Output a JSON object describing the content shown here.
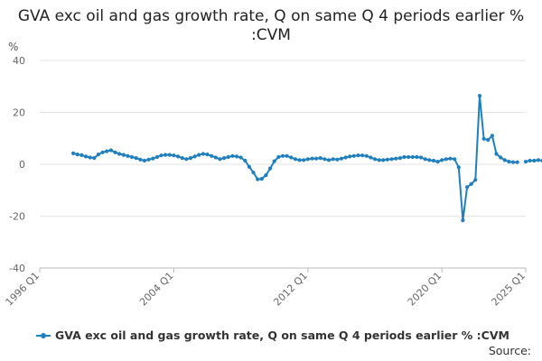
{
  "chart_data": {
    "type": "line",
    "title": "GVA exc oil and gas growth rate, Q on same Q 4 periods earlier % :CVM",
    "ylabel": "%",
    "ylim": [
      -40,
      40
    ],
    "yticks": [
      -40,
      -20,
      0,
      20,
      40
    ],
    "xlim": [
      1996.0,
      2025.0
    ],
    "xticks": [
      {
        "value": 1996.0,
        "label": "1996 Q1"
      },
      {
        "value": 2004.0,
        "label": "2004 Q1"
      },
      {
        "value": 2012.0,
        "label": "2012 Q1"
      },
      {
        "value": 2020.0,
        "label": "2020 Q1"
      },
      {
        "value": 2025.0,
        "label": "2025 Q1"
      }
    ],
    "grid": true,
    "legend_position": "bottom",
    "color": "#1f7fbf",
    "series": [
      {
        "name": "GVA exc oil and gas growth rate, Q on same Q 4 periods earlier % :CVM",
        "start": "1998 Q1",
        "values": [
          4.2,
          3.8,
          3.5,
          3.0,
          2.6,
          2.4,
          3.8,
          4.6,
          5.0,
          5.4,
          4.6,
          4.0,
          3.6,
          3.2,
          2.8,
          2.4,
          1.8,
          1.4,
          1.8,
          2.2,
          2.8,
          3.4,
          3.6,
          3.6,
          3.4,
          3.0,
          2.4,
          2.0,
          2.4,
          3.0,
          3.6,
          4.0,
          3.8,
          3.2,
          2.6,
          2.0,
          2.4,
          2.8,
          3.2,
          3.0,
          2.6,
          1.4,
          -1.0,
          -3.2,
          -5.8,
          -5.6,
          -4.2,
          -1.6,
          1.2,
          2.8,
          3.2,
          3.2,
          2.6,
          2.0,
          1.6,
          1.6,
          2.0,
          2.2,
          2.2,
          2.4,
          2.0,
          1.6,
          2.0,
          1.8,
          2.2,
          2.6,
          3.0,
          3.2,
          3.4,
          3.4,
          3.2,
          2.6,
          2.0,
          1.6,
          1.6,
          1.8,
          2.0,
          2.2,
          2.4,
          2.8,
          2.8,
          2.8,
          2.8,
          2.6,
          2.0,
          1.6,
          1.4,
          1.0,
          1.6,
          2.0,
          2.2,
          2.0,
          -1.2,
          -21.6,
          -8.8,
          -7.6,
          -6.0,
          26.4,
          9.8,
          9.4,
          11.0,
          4.0,
          2.6,
          1.6,
          1.0,
          0.8,
          0.8,
          null,
          1.0,
          1.4,
          1.4,
          1.6,
          1.4
        ]
      }
    ],
    "source": "Source:"
  }
}
